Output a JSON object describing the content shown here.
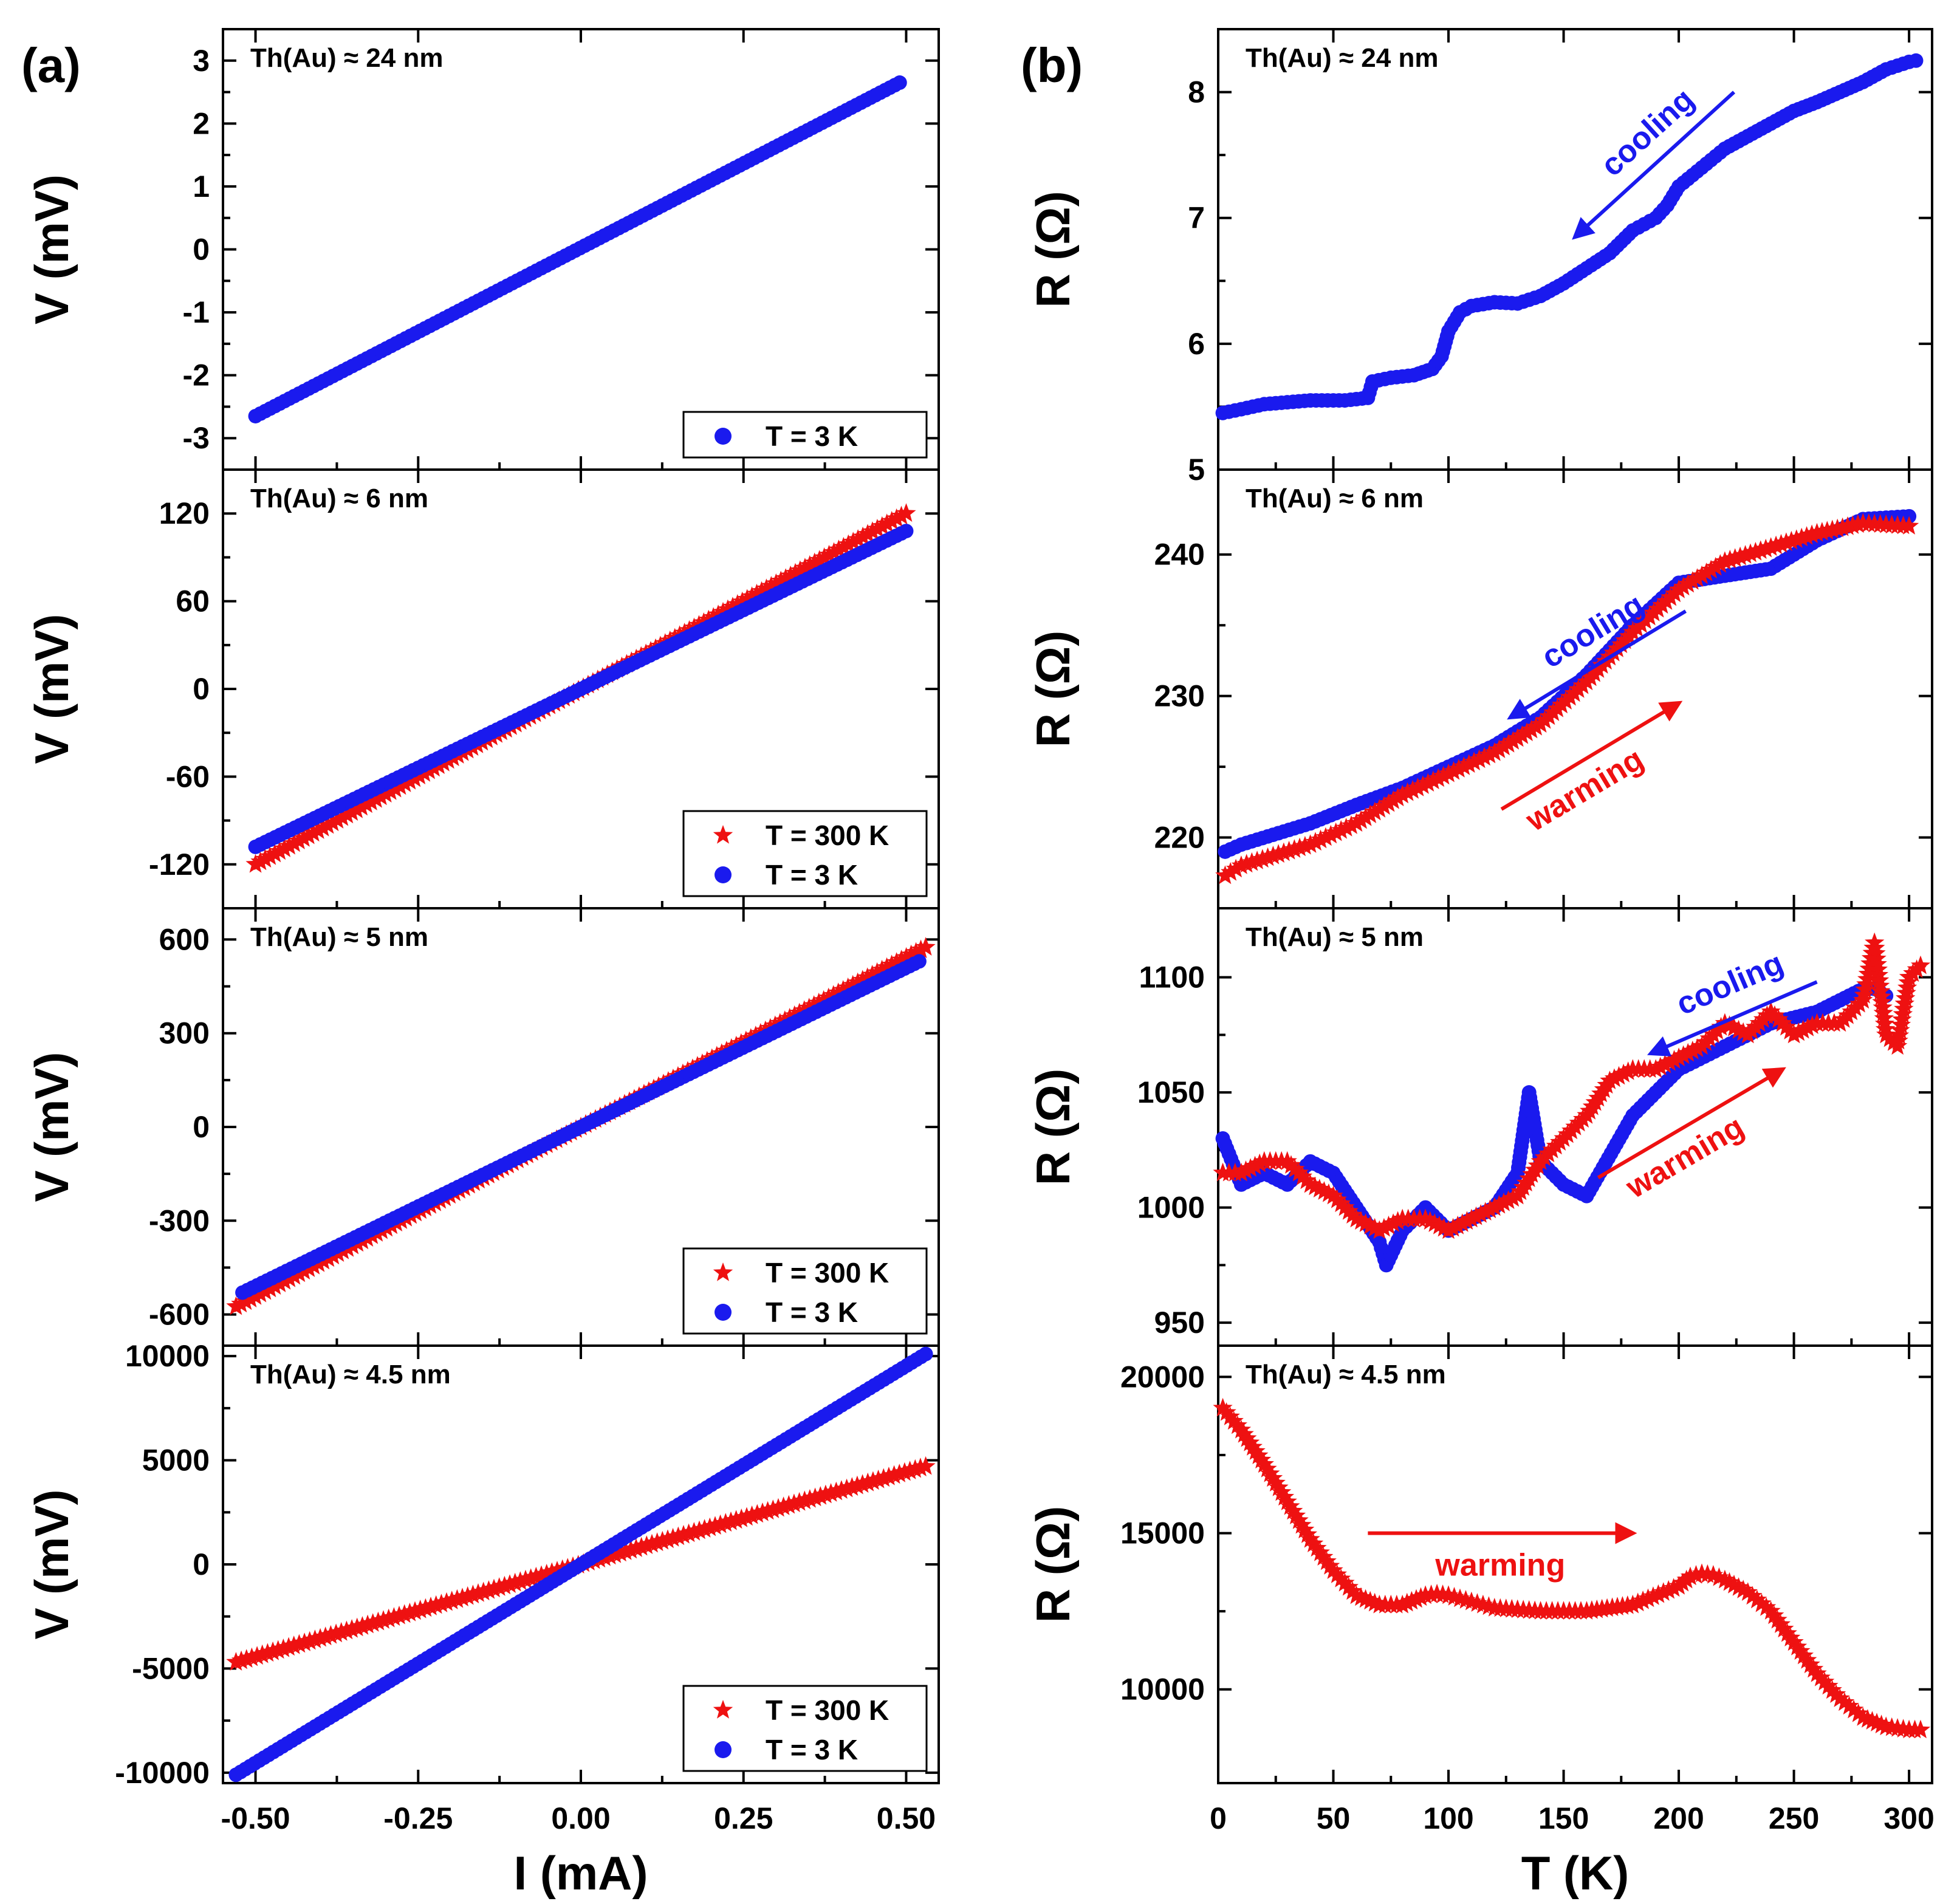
{
  "panel_labels": {
    "a": "(a)",
    "b": "(b)"
  },
  "colors": {
    "blue": "#1a1aee",
    "red": "#ee1111",
    "axis": "#000000"
  },
  "chart_data": [
    {
      "id": "a1",
      "type": "line",
      "panel": "(a)",
      "annotation": "Th(Au) ≈ 24 nm",
      "xlabel": "I (mA)",
      "ylabel": "V (mV)",
      "xlim": [
        -0.55,
        0.55
      ],
      "ylim": [
        -3.5,
        3.5
      ],
      "yticks": [
        -3,
        -2,
        -1,
        0,
        1,
        2,
        3
      ],
      "yticklabels": [
        "-3",
        "-2",
        "-1",
        "0",
        "1",
        "2",
        "3"
      ],
      "legend": [
        "T = 3 K"
      ],
      "series": [
        {
          "name": "T = 3 K",
          "color": "blue",
          "marker": "circle",
          "x": [
            -0.5,
            0.49
          ],
          "y": [
            -2.65,
            2.65
          ]
        }
      ]
    },
    {
      "id": "a2",
      "type": "line",
      "panel": "(a)",
      "annotation": "Th(Au) ≈ 6 nm",
      "xlabel": "I (mA)",
      "ylabel": "V (mV)",
      "xlim": [
        -0.55,
        0.55
      ],
      "ylim": [
        -150,
        150
      ],
      "yticks": [
        -120,
        -60,
        0,
        60,
        120
      ],
      "yticklabels": [
        "-120",
        "-60",
        "0",
        "60",
        "120"
      ],
      "legend": [
        "T = 300 K",
        "T = 3 K"
      ],
      "series": [
        {
          "name": "T = 300 K",
          "color": "red",
          "marker": "star",
          "x": [
            -0.5,
            0.5
          ],
          "y": [
            -120,
            120
          ]
        },
        {
          "name": "T = 3 K",
          "color": "blue",
          "marker": "circle",
          "x": [
            -0.5,
            0.5
          ],
          "y": [
            -108,
            108
          ]
        }
      ]
    },
    {
      "id": "a3",
      "type": "line",
      "panel": "(a)",
      "annotation": "Th(Au) ≈ 5 nm",
      "xlabel": "I (mA)",
      "ylabel": "V (mV)",
      "xlim": [
        -0.55,
        0.55
      ],
      "ylim": [
        -700,
        700
      ],
      "yticks": [
        -600,
        -300,
        0,
        300,
        600
      ],
      "yticklabels": [
        "-600",
        "-300",
        "0",
        "300",
        "600"
      ],
      "legend": [
        "T = 300 K",
        "T = 3 K"
      ],
      "series": [
        {
          "name": "T = 300 K",
          "color": "red",
          "marker": "star",
          "x": [
            -0.53,
            0.53
          ],
          "y": [
            -575,
            575
          ]
        },
        {
          "name": "T = 3 K",
          "color": "blue",
          "marker": "circle",
          "x": [
            -0.52,
            0.52
          ],
          "y": [
            -530,
            530
          ]
        }
      ]
    },
    {
      "id": "a4",
      "type": "line",
      "panel": "(a)",
      "annotation": "Th(Au) ≈ 4.5 nm",
      "xlabel": "I (mA)",
      "ylabel": "V (mV)",
      "xlim": [
        -0.55,
        0.55
      ],
      "ylim": [
        -10500,
        10500
      ],
      "xticks": [
        -0.5,
        -0.25,
        0,
        0.25,
        0.5
      ],
      "xticklabels": [
        "-0.50",
        "-0.25",
        "0.00",
        "0.25",
        "0.50"
      ],
      "yticks": [
        -10000,
        -5000,
        0,
        5000,
        10000
      ],
      "yticklabels": [
        "-10000",
        "-5000",
        "0",
        "5000",
        "10000"
      ],
      "legend": [
        "T = 300 K",
        "T = 3 K"
      ],
      "series": [
        {
          "name": "T = 300 K",
          "color": "red",
          "marker": "star",
          "x": [
            -0.53,
            0.53
          ],
          "y": [
            -4700,
            4700
          ]
        },
        {
          "name": "T = 3 K",
          "color": "blue",
          "marker": "circle",
          "x": [
            -0.53,
            0.53
          ],
          "y": [
            -10100,
            10100
          ]
        }
      ]
    },
    {
      "id": "b1",
      "type": "line",
      "panel": "(b)",
      "annotation": "Th(Au) ≈ 24 nm",
      "xlabel": "T (K)",
      "ylabel": "R (Ω)",
      "xlim": [
        0,
        310
      ],
      "ylim": [
        5,
        8.5
      ],
      "yticks": [
        5,
        6,
        7,
        8
      ],
      "yticklabels": [
        "5",
        "6",
        "7",
        "8"
      ],
      "arrows": [
        {
          "label": "cooling",
          "color": "blue",
          "from": [
            224,
            8.0
          ],
          "to": [
            155,
            6.85
          ]
        }
      ],
      "series": [
        {
          "name": "cooling",
          "color": "blue",
          "marker": "circle",
          "x": [
            2,
            10,
            20,
            40,
            55,
            65,
            67,
            75,
            85,
            93,
            97,
            100,
            105,
            110,
            120,
            130,
            140,
            150,
            160,
            170,
            180,
            185,
            190,
            195,
            200,
            210,
            220,
            230,
            240,
            250,
            260,
            270,
            280,
            290,
            300,
            303
          ],
          "y": [
            5.45,
            5.48,
            5.52,
            5.55,
            5.55,
            5.57,
            5.7,
            5.73,
            5.75,
            5.8,
            5.9,
            6.1,
            6.25,
            6.3,
            6.33,
            6.32,
            6.38,
            6.48,
            6.6,
            6.72,
            6.9,
            6.95,
            7.0,
            7.1,
            7.25,
            7.4,
            7.55,
            7.65,
            7.75,
            7.85,
            7.92,
            8.0,
            8.08,
            8.18,
            8.24,
            8.25
          ]
        }
      ]
    },
    {
      "id": "b2",
      "type": "line",
      "panel": "(b)",
      "annotation": "Th(Au) ≈ 6 nm",
      "xlabel": "T (K)",
      "ylabel": "R (Ω)",
      "xlim": [
        0,
        310
      ],
      "ylim": [
        215,
        246
      ],
      "yticks": [
        220,
        230,
        240
      ],
      "yticklabels": [
        "220",
        "230",
        "240"
      ],
      "arrows": [
        {
          "label": "cooling",
          "color": "blue",
          "from": [
            203,
            236
          ],
          "to": [
            127,
            228.5
          ]
        },
        {
          "label": "warming",
          "color": "red",
          "from": [
            123,
            222
          ],
          "to": [
            200,
            229.5
          ]
        }
      ],
      "series": [
        {
          "name": "cooling",
          "color": "blue",
          "marker": "circle",
          "x": [
            3,
            10,
            40,
            60,
            80,
            100,
            120,
            140,
            160,
            180,
            200,
            220,
            240,
            260,
            280,
            300
          ],
          "y": [
            219,
            219.5,
            221,
            222.3,
            223.5,
            225,
            226.5,
            228.5,
            231.5,
            235,
            238,
            238.5,
            239,
            241,
            242.5,
            242.7
          ]
        },
        {
          "name": "warming",
          "color": "red",
          "marker": "star",
          "x": [
            3,
            10,
            40,
            60,
            80,
            100,
            120,
            140,
            160,
            180,
            200,
            220,
            240,
            260,
            280,
            300
          ],
          "y": [
            217.3,
            218,
            219.5,
            221,
            223,
            224.5,
            226,
            228,
            231,
            234.5,
            237.5,
            239.5,
            240.5,
            241.5,
            242.2,
            242
          ]
        }
      ]
    },
    {
      "id": "b3",
      "type": "line",
      "panel": "(b)",
      "annotation": "Th(Au) ≈ 5 nm",
      "xlabel": "T (K)",
      "ylabel": "R (Ω)",
      "xlim": [
        0,
        310
      ],
      "ylim": [
        940,
        1130
      ],
      "yticks": [
        950,
        1000,
        1050,
        1100
      ],
      "yticklabels": [
        "950",
        "1000",
        "1050",
        "1100"
      ],
      "arrows": [
        {
          "label": "cooling",
          "color": "blue",
          "from": [
            260,
            1098
          ],
          "to": [
            188,
            1067
          ]
        },
        {
          "label": "warming",
          "color": "red",
          "from": [
            165,
            1013
          ],
          "to": [
            245,
            1060
          ]
        }
      ],
      "series": [
        {
          "name": "cooling",
          "color": "blue",
          "marker": "circle",
          "x": [
            2,
            10,
            20,
            30,
            40,
            50,
            60,
            70,
            73,
            80,
            90,
            100,
            110,
            120,
            130,
            135,
            140,
            150,
            160,
            180,
            200,
            220,
            240,
            260,
            270,
            280,
            285,
            290
          ],
          "y": [
            1030,
            1010,
            1015,
            1010,
            1020,
            1015,
            1000,
            985,
            975,
            990,
            1000,
            990,
            995,
            1000,
            1015,
            1050,
            1020,
            1010,
            1005,
            1040,
            1060,
            1070,
            1080,
            1085,
            1090,
            1095,
            1095,
            1092
          ]
        },
        {
          "name": "warming",
          "color": "red",
          "marker": "star",
          "x": [
            2,
            10,
            20,
            30,
            40,
            50,
            60,
            70,
            80,
            90,
            100,
            110,
            120,
            130,
            140,
            150,
            160,
            170,
            180,
            190,
            200,
            210,
            220,
            230,
            240,
            250,
            260,
            270,
            280,
            285,
            290,
            295,
            300,
            305
          ],
          "y": [
            1015,
            1015,
            1020,
            1020,
            1010,
            1005,
            995,
            990,
            995,
            995,
            990,
            995,
            1000,
            1005,
            1020,
            1030,
            1040,
            1055,
            1060,
            1060,
            1065,
            1070,
            1080,
            1075,
            1085,
            1075,
            1080,
            1080,
            1090,
            1115,
            1075,
            1070,
            1100,
            1105
          ]
        }
      ]
    },
    {
      "id": "b4",
      "type": "line",
      "panel": "(b)",
      "annotation": "Th(Au) ≈ 4.5 nm",
      "xlabel": "T (K)",
      "ylabel": "R (Ω)",
      "xlim": [
        0,
        310
      ],
      "ylim": [
        7000,
        21000
      ],
      "xticks": [
        0,
        50,
        100,
        150,
        200,
        250,
        300
      ],
      "xticklabels": [
        "0",
        "50",
        "100",
        "150",
        "200",
        "250",
        "300"
      ],
      "yticks": [
        10000,
        15000,
        20000
      ],
      "yticklabels": [
        "10000",
        "15000",
        "20000"
      ],
      "arrows": [
        {
          "label": "warming",
          "color": "red",
          "from": [
            65,
            15000
          ],
          "to": [
            180,
            15000
          ]
        }
      ],
      "series": [
        {
          "name": "warming",
          "color": "red",
          "marker": "star",
          "x": [
            2,
            10,
            20,
            30,
            40,
            50,
            60,
            70,
            80,
            90,
            95,
            100,
            110,
            120,
            140,
            160,
            180,
            200,
            205,
            210,
            215,
            220,
            230,
            240,
            250,
            260,
            270,
            280,
            290,
            300,
            305
          ],
          "y": [
            19000,
            18300,
            17200,
            16000,
            14800,
            13800,
            13000,
            12700,
            12700,
            13000,
            13050,
            13000,
            12800,
            12600,
            12500,
            12500,
            12700,
            13300,
            13600,
            13700,
            13650,
            13500,
            13100,
            12500,
            11500,
            10500,
            9700,
            9100,
            8800,
            8700,
            8700
          ]
        }
      ]
    }
  ]
}
